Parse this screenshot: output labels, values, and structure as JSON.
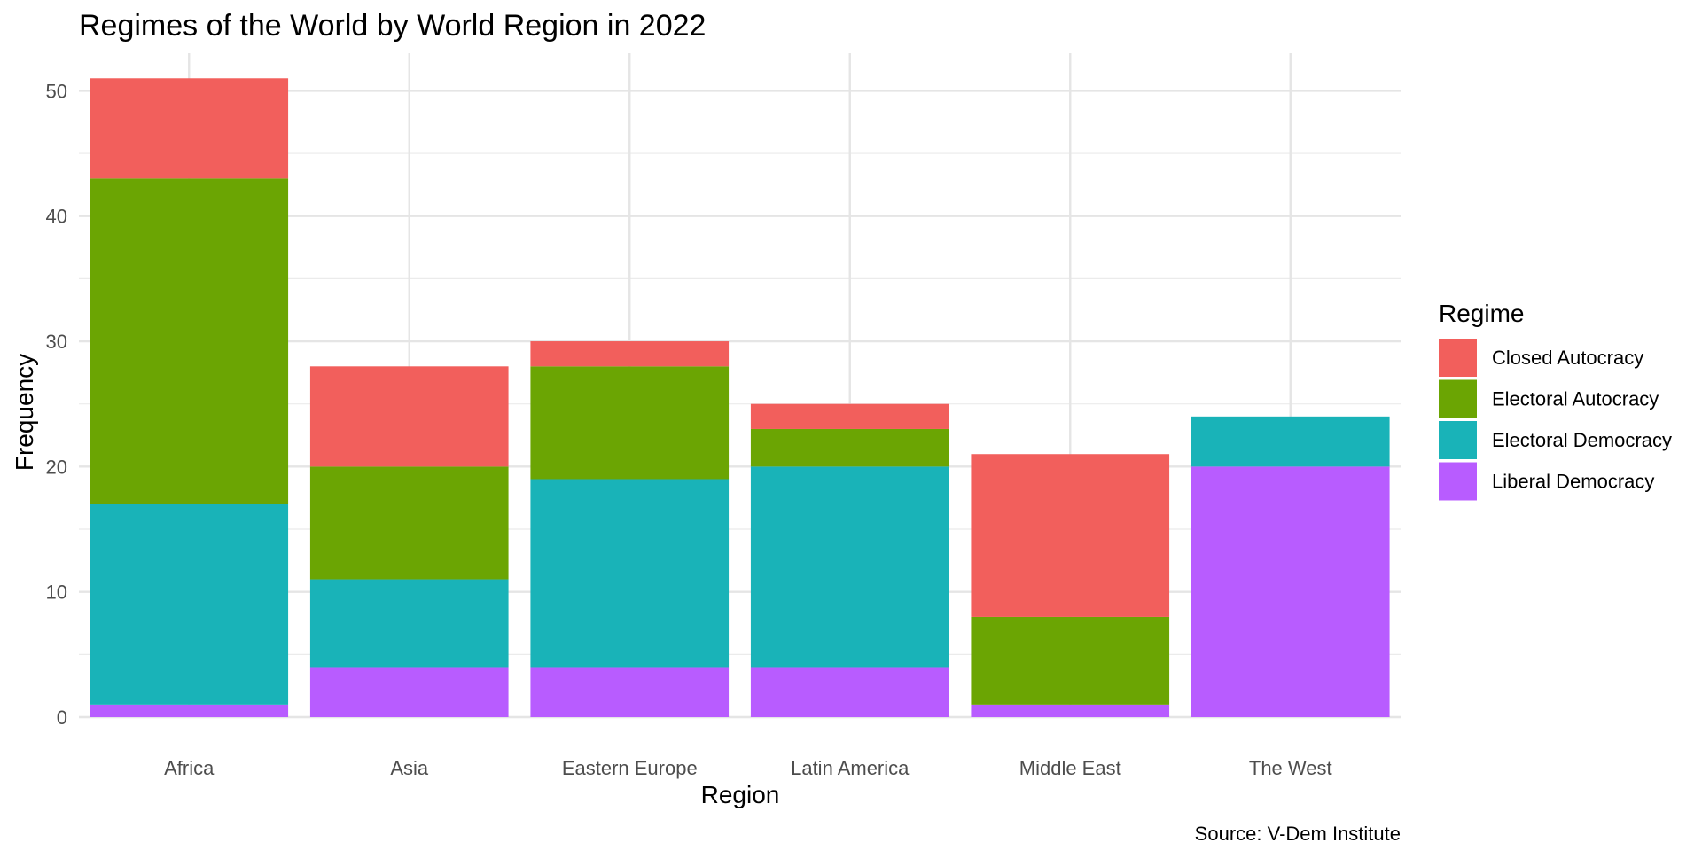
{
  "chart_data": {
    "type": "bar",
    "stacked": true,
    "title": "Regimes of the World by World Region in 2022",
    "xlabel": "Region",
    "ylabel": "Frequency",
    "caption": "Source: V-Dem Institute",
    "categories": [
      "Africa",
      "Asia",
      "Eastern Europe",
      "Latin America",
      "Middle East",
      "The West"
    ],
    "ylim": [
      0,
      53
    ],
    "yticks": [
      0,
      10,
      20,
      30,
      40,
      50
    ],
    "grid": true,
    "legend": {
      "title": "Regime",
      "position": "right"
    },
    "series": [
      {
        "name": "Liberal Democracy",
        "color": "#B85CFF",
        "values": [
          1,
          4,
          4,
          4,
          1,
          20
        ]
      },
      {
        "name": "Electoral Democracy",
        "color": "#19B3B8",
        "values": [
          16,
          7,
          15,
          16,
          0,
          4
        ]
      },
      {
        "name": "Electoral Autocracy",
        "color": "#6BA503",
        "values": [
          26,
          9,
          9,
          3,
          7,
          0
        ]
      },
      {
        "name": "Closed Autocracy",
        "color": "#F25F5C",
        "values": [
          8,
          8,
          2,
          2,
          13,
          0
        ]
      }
    ],
    "legend_order": [
      "Closed Autocracy",
      "Electoral Autocracy",
      "Electoral Democracy",
      "Liberal Democracy"
    ]
  }
}
